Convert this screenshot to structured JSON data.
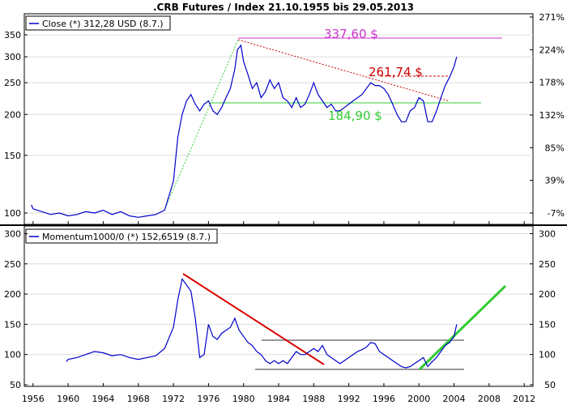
{
  "title": ".CRB Futures / Index 21.10.1955 bis 29.05.2013",
  "colors": {
    "price_line": "#0000cc",
    "resistance": "#cc33cc",
    "downtrend": "#cc0000",
    "support": "#33cc33",
    "momentum_trend": "#dd0000",
    "momentum_up": "#33cc33",
    "band": "#999999"
  },
  "chart_data": [
    {
      "type": "line",
      "legend": "Close (*) 312,28 USD (8.7.)",
      "y_scale": "log",
      "xlim": [
        1955,
        2013
      ],
      "ylim": [
        90,
        370
      ],
      "y_ticks": [
        100,
        150,
        200,
        250,
        300,
        350
      ],
      "y_right_ticks": [
        "271%",
        "224%",
        "178%",
        "132%",
        "85%",
        "39%",
        "-7%"
      ],
      "series": [
        {
          "x": [
            1955.8,
            1956,
            1957,
            1958,
            1959,
            1960,
            1961,
            1962,
            1963,
            1964,
            1965,
            1966,
            1967,
            1968,
            1969,
            1970,
            1971,
            1972,
            1972.5,
            1973,
            1973.5,
            1974,
            1974.5,
            1975,
            1975.5,
            1976,
            1976.5,
            1977,
            1977.5,
            1978,
            1978.5,
            1979,
            1979.3,
            1979.7,
            1980,
            1980.5,
            1981,
            1981.5,
            1982,
            1982.5,
            1983,
            1983.5,
            1984,
            1984.5,
            1985,
            1985.5,
            1986,
            1986.5,
            1987,
            1987.5,
            1988,
            1988.5,
            1989,
            1989.5,
            1990,
            1990.5,
            1991,
            1991.5,
            1992,
            1992.5,
            1993,
            1993.5,
            1994,
            1994.5,
            1995,
            1995.5,
            1996,
            1996.5,
            1997,
            1997.5,
            1998,
            1998.5,
            1999,
            1999.5,
            2000,
            2000.5,
            2001,
            2001.5,
            2002,
            2002.5,
            2003,
            2003.5,
            2004,
            2004.3
          ],
          "y": [
            106,
            103,
            101,
            99,
            100,
            98,
            99,
            101,
            100,
            102,
            99,
            101,
            98,
            97,
            98,
            99,
            102,
            125,
            170,
            200,
            220,
            230,
            215,
            205,
            215,
            220,
            205,
            200,
            210,
            225,
            240,
            275,
            315,
            325,
            290,
            265,
            240,
            250,
            225,
            235,
            255,
            240,
            250,
            225,
            220,
            210,
            225,
            210,
            215,
            230,
            250,
            230,
            220,
            210,
            215,
            205,
            205,
            210,
            215,
            220,
            225,
            230,
            240,
            250,
            245,
            245,
            240,
            230,
            215,
            200,
            190,
            190,
            205,
            210,
            225,
            220,
            190,
            190,
            205,
            225,
            245,
            260,
            280,
            300
          ]
        }
      ],
      "annotations": [
        {
          "label": "337,60 $",
          "value": 337.6
        },
        {
          "label": "261,74 $",
          "value": 261.74
        },
        {
          "label": "184,90 $",
          "value": 184.9
        }
      ]
    },
    {
      "type": "line",
      "legend": "Momentum1000/0 (*) 152,6519 (8.7.)",
      "xlim": [
        1955,
        2013
      ],
      "ylim": [
        50,
        310
      ],
      "y_ticks": [
        50,
        100,
        150,
        200,
        250,
        300
      ],
      "series": [
        {
          "x": [
            1959.8,
            1960,
            1961,
            1962,
            1963,
            1964,
            1965,
            1966,
            1967,
            1968,
            1969,
            1970,
            1971,
            1972,
            1972.5,
            1973,
            1973.5,
            1974,
            1974.5,
            1975,
            1975.5,
            1976,
            1976.5,
            1977,
            1977.5,
            1978,
            1978.5,
            1979,
            1979.5,
            1980,
            1980.5,
            1981,
            1981.5,
            1982,
            1982.5,
            1983,
            1983.5,
            1984,
            1984.5,
            1985,
            1985.5,
            1986,
            1986.5,
            1987,
            1987.5,
            1988,
            1988.5,
            1989,
            1989.5,
            1990,
            1990.5,
            1991,
            1991.5,
            1992,
            1992.5,
            1993,
            1993.5,
            1994,
            1994.5,
            1995,
            1995.5,
            1996,
            1996.5,
            1997,
            1997.5,
            1998,
            1998.5,
            1999,
            1999.5,
            2000,
            2000.5,
            2001,
            2001.5,
            2002,
            2002.5,
            2003,
            2003.5,
            2004,
            2004.3
          ],
          "y": [
            88,
            92,
            95,
            100,
            105,
            103,
            98,
            100,
            95,
            92,
            95,
            98,
            110,
            145,
            190,
            225,
            215,
            205,
            160,
            95,
            100,
            150,
            130,
            125,
            135,
            140,
            145,
            160,
            140,
            130,
            120,
            115,
            105,
            100,
            90,
            85,
            90,
            85,
            90,
            85,
            95,
            105,
            100,
            100,
            105,
            110,
            105,
            115,
            100,
            95,
            90,
            85,
            90,
            95,
            100,
            105,
            108,
            112,
            120,
            118,
            105,
            100,
            95,
            90,
            85,
            80,
            78,
            80,
            85,
            90,
            95,
            80,
            88,
            95,
            105,
            115,
            120,
            130,
            150
          ]
        }
      ],
      "x_ticks": [
        1956,
        1960,
        1964,
        1968,
        1972,
        1976,
        1980,
        1984,
        1988,
        1992,
        1996,
        2000,
        2004,
        2008,
        2012
      ]
    }
  ]
}
